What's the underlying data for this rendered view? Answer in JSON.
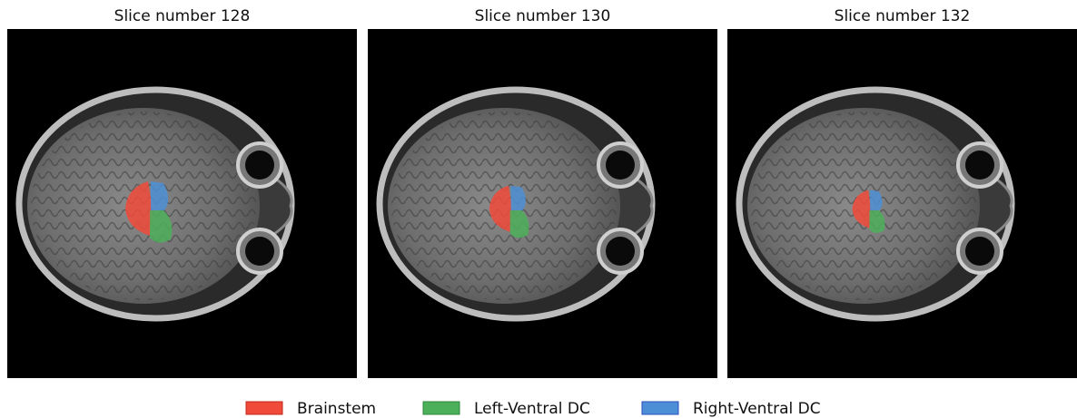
{
  "panels": [
    {
      "title": "Slice number 128"
    },
    {
      "title": "Slice number 130"
    },
    {
      "title": "Slice number 132"
    }
  ],
  "legend": [
    {
      "label": "Brainstem",
      "color": "#f04a3a",
      "edge": "#c0281c"
    },
    {
      "label": "Left-Ventral DC",
      "color": "#4caf5a",
      "edge": "#2e8a3c"
    },
    {
      "label": "Right-Ventral DC",
      "color": "#4d8fd6",
      "edge": "#2a4fc0"
    }
  ]
}
